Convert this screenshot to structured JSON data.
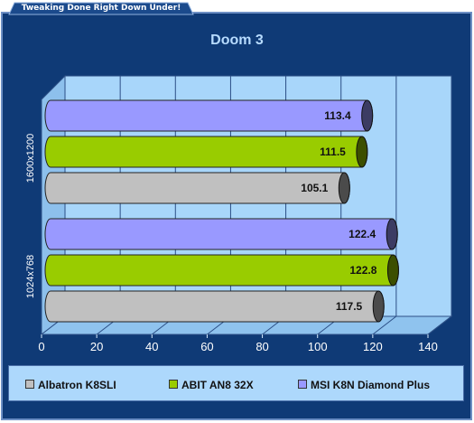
{
  "header": {
    "tagline": "Tweaking Done Right Down Under!"
  },
  "chart_data": {
    "type": "bar",
    "orientation": "horizontal",
    "title": "Doom 3",
    "categories": [
      "1600x1200",
      "1024x768"
    ],
    "series": [
      {
        "name": "Albatron K8SLI",
        "color": "#c0c0c0",
        "values": [
          105.1,
          117.5
        ]
      },
      {
        "name": "ABIT AN8 32X",
        "color": "#99cc00",
        "values": [
          111.5,
          122.8
        ]
      },
      {
        "name": "MSI K8N Diamond Plus",
        "color": "#9999ff",
        "values": [
          113.4,
          122.4
        ]
      }
    ],
    "xlim": [
      0,
      140
    ],
    "xticks": [
      0,
      20,
      40,
      60,
      80,
      100,
      120,
      140
    ],
    "data_labels": true,
    "grid": true,
    "legend_position": "bottom"
  }
}
